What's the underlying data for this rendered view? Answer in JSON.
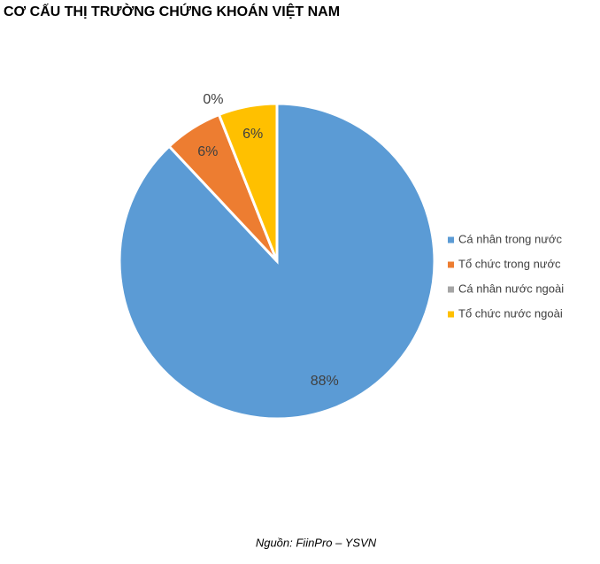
{
  "chart_data": {
    "type": "pie",
    "title": "CƠ CẤU THỊ TRƯỜNG CHỨNG KHOÁN VIỆT NAM",
    "categories": [
      "Cá nhân trong nước",
      "Tổ chức trong nước",
      "Cá nhân nước ngoài",
      "Tổ chức nước ngoài"
    ],
    "values": [
      88,
      6,
      0,
      6
    ],
    "value_labels": [
      "88%",
      "6%",
      "0%",
      "6%"
    ],
    "colors": [
      "#5b9bd5",
      "#ed7d31",
      "#a5a5a5",
      "#ffc000"
    ],
    "legend": "right",
    "source": "Nguồn: FiinPro – YSVN"
  }
}
